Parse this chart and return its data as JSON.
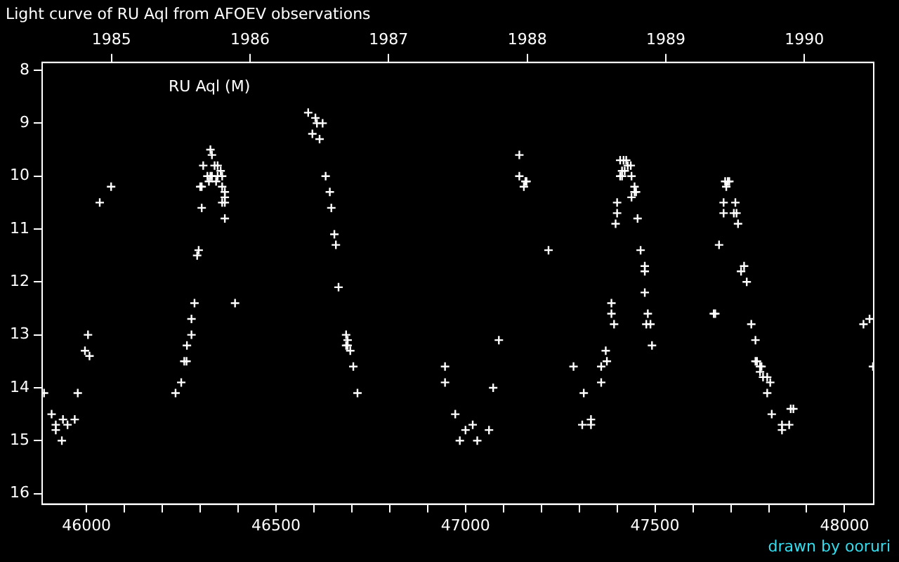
{
  "chart_data": {
    "type": "scatter",
    "title": "Light curve of RU Aql from AFOEV observations",
    "annotations": [
      "RU Aql (M)",
      "drawn by ooruri"
    ],
    "x": [
      45888,
      45908,
      45919,
      45919,
      45935,
      45938,
      45950,
      45969,
      45977,
      45996,
      46004,
      46008,
      46035,
      46065,
      46235,
      46250,
      46258,
      46264,
      46265,
      46277,
      46277,
      46285,
      46292,
      46296,
      46300,
      46304,
      46304,
      46308,
      46319,
      46327,
      46331,
      46323,
      46327,
      46331,
      46338,
      46346,
      46342,
      46346,
      46358,
      46354,
      46358,
      46365,
      46365,
      46358,
      46365,
      46365,
      46392,
      46585,
      46604,
      46608,
      46623,
      46596,
      46615,
      46631,
      46642,
      46646,
      46654,
      46658,
      46665,
      46685,
      46689,
      46685,
      46689,
      46696,
      46704,
      46715,
      46946,
      46946,
      46973,
      46985,
      47000,
      47019,
      47031,
      47062,
      47073,
      47088,
      47142,
      47142,
      47154,
      47158,
      47161,
      47219,
      47285,
      47308,
      47312,
      47331,
      47331,
      47358,
      47358,
      47370,
      47373,
      47385,
      47385,
      47392,
      47396,
      47400,
      47400,
      47408,
      47417,
      47424,
      47413,
      47420,
      47408,
      47413,
      47428,
      47436,
      47438,
      47446,
      47446,
      47450,
      47438,
      47454,
      47462,
      47473,
      47473,
      47473,
      47481,
      47477,
      47488,
      47492,
      47655,
      47659,
      47669,
      47681,
      47681,
      47685,
      47692,
      47696,
      47688,
      47712,
      47708,
      47715,
      47719,
      47735,
      47727,
      47742,
      47754,
      47765,
      47765,
      47769,
      47777,
      47781,
      47777,
      47785,
      47796,
      47804,
      47796,
      47808,
      47835,
      47835,
      47854,
      47858,
      47865,
      48050,
      48066,
      48075
    ],
    "values": [
      14.1,
      14.5,
      14.7,
      14.8,
      15.0,
      14.6,
      14.7,
      14.6,
      14.1,
      13.3,
      13.0,
      13.4,
      10.5,
      10.2,
      14.1,
      13.9,
      13.5,
      13.5,
      13.2,
      13.0,
      12.7,
      12.4,
      11.5,
      11.4,
      10.2,
      10.2,
      10.6,
      9.8,
      10.0,
      10.0,
      10.0,
      10.1,
      9.5,
      9.6,
      9.8,
      9.8,
      10.1,
      10.0,
      10.0,
      9.9,
      10.2,
      10.3,
      10.4,
      10.5,
      10.5,
      10.8,
      12.4,
      8.8,
      8.9,
      9.0,
      9.0,
      9.2,
      9.3,
      10.0,
      10.3,
      10.6,
      11.1,
      11.3,
      12.1,
      13.0,
      13.1,
      13.2,
      13.2,
      13.3,
      13.6,
      14.1,
      13.6,
      13.9,
      14.5,
      15.0,
      14.8,
      14.7,
      15.0,
      14.8,
      14.0,
      13.1,
      9.6,
      10.0,
      10.2,
      10.1,
      10.1,
      11.4,
      13.6,
      14.7,
      14.1,
      14.7,
      14.6,
      13.9,
      13.6,
      13.3,
      13.5,
      12.4,
      12.6,
      12.8,
      10.9,
      10.7,
      10.5,
      9.7,
      9.7,
      9.7,
      9.9,
      9.9,
      10.0,
      10.0,
      9.8,
      9.8,
      10.0,
      10.2,
      10.3,
      10.3,
      10.4,
      10.8,
      11.4,
      11.7,
      11.8,
      12.2,
      12.6,
      12.8,
      12.8,
      13.2,
      12.6,
      12.6,
      11.3,
      10.5,
      10.7,
      10.1,
      10.1,
      10.1,
      10.2,
      10.5,
      10.7,
      10.7,
      10.9,
      11.7,
      11.8,
      12.0,
      12.8,
      13.1,
      13.5,
      13.5,
      13.6,
      13.6,
      13.7,
      13.8,
      13.8,
      13.9,
      14.1,
      14.5,
      14.7,
      14.8,
      14.7,
      14.4,
      14.4,
      12.8,
      12.7,
      13.6
    ],
    "color": "#ffffff",
    "marker": "cross",
    "xlim": [
      45883,
      48077
    ],
    "ylim": [
      16.2,
      7.85
    ],
    "xticks": [
      46000,
      {
        "value": 46100,
        "label": null
      },
      {
        "value": 46200,
        "label": null
      },
      {
        "value": 46300,
        "label": null
      },
      {
        "value": 46400,
        "label": null
      },
      46500,
      {
        "value": 46600,
        "label": null
      },
      {
        "value": 46700,
        "label": null
      },
      {
        "value": 46800,
        "label": null
      },
      {
        "value": 46900,
        "label": null
      },
      47000,
      {
        "value": 47100,
        "label": null
      },
      {
        "value": 47200,
        "label": null
      },
      {
        "value": 47300,
        "label": null
      },
      {
        "value": 47400,
        "label": null
      },
      47500,
      {
        "value": 47600,
        "label": null
      },
      {
        "value": 47700,
        "label": null
      },
      {
        "value": 47800,
        "label": null
      },
      {
        "value": 47900,
        "label": null
      },
      48000
    ],
    "yticks": [
      8,
      9,
      10,
      11,
      12,
      13,
      14,
      15,
      16
    ],
    "x2lim": [
      1984.5,
      1990.5
    ],
    "x2ticks": [
      1985,
      1986,
      1987,
      1988,
      1989,
      1990
    ]
  }
}
